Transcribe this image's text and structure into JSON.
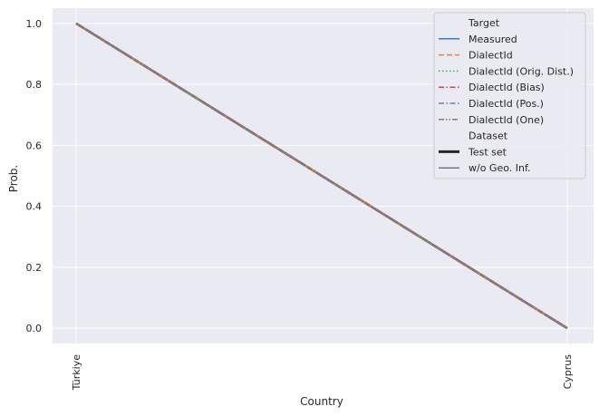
{
  "chart_data": {
    "type": "line",
    "categories": [
      "Türkiye",
      "Cyprus"
    ],
    "xlabel": "Country",
    "ylabel": "Prob.",
    "ylim": [
      -0.05,
      1.05
    ],
    "yticks": [
      "0.0",
      "0.2",
      "0.4",
      "0.6",
      "0.8",
      "1.0"
    ],
    "grid": true,
    "legend_position": "top-right",
    "legend": {
      "target_title": "Target",
      "dataset_title": "Dataset",
      "dataset_entries": [
        {
          "label": "Test set",
          "style": "thick"
        },
        {
          "label": "w/o Geo. Inf.",
          "style": "thin"
        }
      ]
    },
    "series": [
      {
        "name": "Measured",
        "color": "#4c72b0",
        "dash": "solid",
        "values": [
          1.0,
          0.0
        ]
      },
      {
        "name": "DialectId",
        "color": "#dd8452",
        "dash": "dashed",
        "values": [
          1.0,
          0.0
        ]
      },
      {
        "name": "DialectId (Orig. Dist.)",
        "color": "#55a868",
        "dash": "dotted",
        "values": [
          1.0,
          0.0
        ]
      },
      {
        "name": "DialectId (Bias)",
        "color": "#c44e52",
        "dash": "dashdot",
        "values": [
          1.0,
          0.0
        ]
      },
      {
        "name": "DialectId (Pos.)",
        "color": "#8172b3",
        "dash": "dashdot",
        "values": [
          1.0,
          0.0
        ]
      },
      {
        "name": "DialectId (One)",
        "color": "#937860",
        "dash": "dashdotdot",
        "values": [
          1.0,
          0.0
        ]
      }
    ]
  }
}
